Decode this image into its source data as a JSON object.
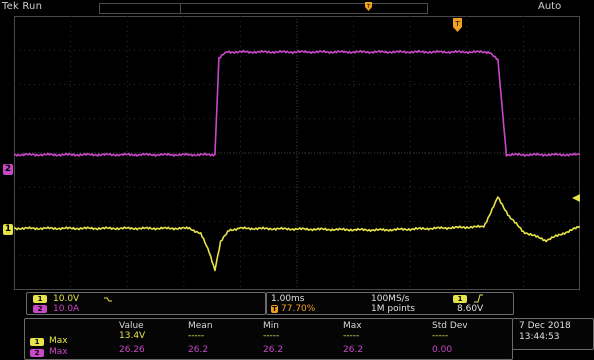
{
  "topbar": {
    "brand": "Tek Run",
    "mode": "Auto"
  },
  "channels": {
    "ch1": {
      "label": "1",
      "color": "#e6e44a",
      "scale": "10.0V",
      "coupling": "DC"
    },
    "ch2": {
      "label": "2",
      "color": "#c848c8",
      "scale": "10.0A"
    }
  },
  "horizontal": {
    "timebase": "1.00ms",
    "trigger_position": "77.70%",
    "sample_rate": "100MS/s",
    "record_length": "1M points"
  },
  "trigger": {
    "source": "1",
    "slope": "rising",
    "level": "8.60V"
  },
  "measurements": {
    "headers": [
      "Value",
      "Mean",
      "Min",
      "Max",
      "Std Dev"
    ],
    "rows": [
      {
        "channel": "1",
        "name": "Max",
        "value": "13.4V",
        "mean": "-----",
        "min": "-----",
        "max": "-----",
        "std_dev": "-----",
        "color": "#e6e44a"
      },
      {
        "channel": "2",
        "name": "Max",
        "value": "26.26",
        "mean": "26.2",
        "min": "26.2",
        "max": "26.2",
        "std_dev": "0.00",
        "color": "#c848c8"
      }
    ]
  },
  "datetime": {
    "date": "7 Dec 2018",
    "time": "13:44:53"
  },
  "chart_data": {
    "type": "line",
    "x_divisions": 10,
    "y_divisions": 8,
    "x": [
      0,
      3.4,
      3.5,
      3.6,
      6.3,
      8.2,
      8.3,
      8.5,
      9.2,
      10
    ],
    "series": [
      {
        "name": "2",
        "color": "#c848c8",
        "x": [
          0,
          3.55,
          3.62,
          3.75,
          8.4,
          8.55,
          8.7,
          10
        ],
        "y": [
          -0.05,
          -0.05,
          2.75,
          2.95,
          2.95,
          2.7,
          -0.05,
          -0.05
        ]
      },
      {
        "name": "1",
        "color": "#e6e44a",
        "x": [
          0,
          3.1,
          3.3,
          3.45,
          3.55,
          3.65,
          3.8,
          4.0,
          6.5,
          8.3,
          8.55,
          8.75,
          9.0,
          9.4,
          10
        ],
        "y": [
          -2.2,
          -2.2,
          -2.35,
          -2.9,
          -3.4,
          -2.6,
          -2.25,
          -2.2,
          -2.25,
          -2.15,
          -1.3,
          -1.85,
          -2.3,
          -2.55,
          -2.15
        ]
      }
    ]
  }
}
